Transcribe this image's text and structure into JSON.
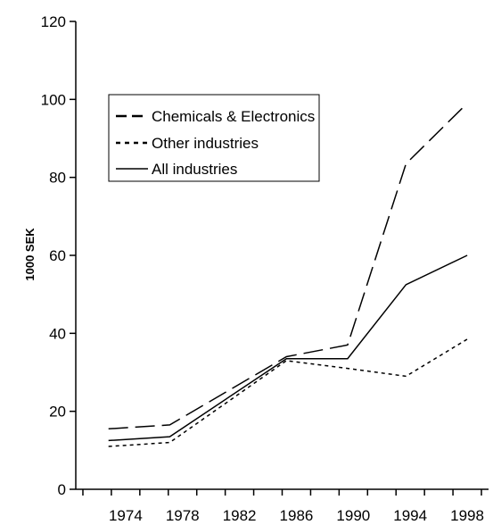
{
  "chart_data": {
    "type": "line",
    "title": "",
    "xlabel": "",
    "ylabel": "1000 SEK",
    "x": [
      "1974",
      "1978",
      "1982",
      "1986",
      "1990",
      "1994",
      "1998"
    ],
    "ylim": [
      0,
      120
    ],
    "yticks": [
      "0",
      "20",
      "40",
      "60",
      "80",
      "100",
      "120"
    ],
    "grid": false,
    "legend_position": "upper-left",
    "series": [
      {
        "name": "Chemicals & Electronics",
        "style": "long-dash",
        "color": "#000000",
        "x": [
          1972.8,
          1977.1,
          1985.3,
          1989.6,
          1993.7,
          1998
        ],
        "values": [
          15.5,
          16.5,
          34,
          37,
          83.5,
          99
        ]
      },
      {
        "name": "Other industries",
        "style": "dotted",
        "color": "#000000",
        "x": [
          1972.8,
          1977.1,
          1985.3,
          1989.6,
          1993.7,
          1998
        ],
        "values": [
          11,
          12,
          33,
          31,
          29,
          38.5
        ]
      },
      {
        "name": "All industries",
        "style": "solid",
        "color": "#000000",
        "x": [
          1972.8,
          1977.1,
          1985.3,
          1989.6,
          1993.7,
          1998
        ],
        "values": [
          12.5,
          13.5,
          33.5,
          33.5,
          52.5,
          60
        ]
      }
    ]
  }
}
